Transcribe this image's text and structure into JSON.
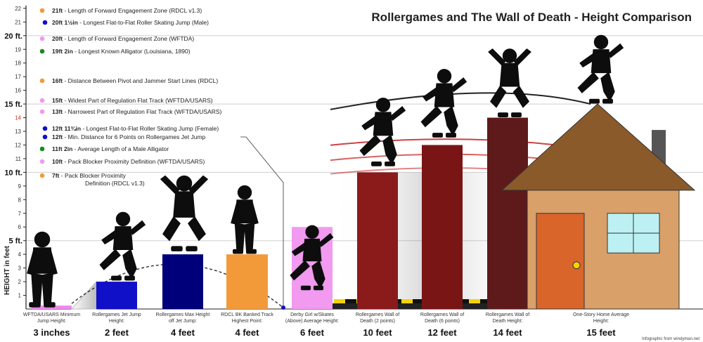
{
  "chart_data": {
    "type": "bar",
    "title": "Rollergames and The Wall of Death - Height Comparison",
    "ylabel": "HEIGHT in feet",
    "ylim": [
      0,
      22
    ],
    "yticks": [
      {
        "value": 1,
        "label": "1"
      },
      {
        "value": 2,
        "label": "2"
      },
      {
        "value": 3,
        "label": "3"
      },
      {
        "value": 4,
        "label": "4"
      },
      {
        "value": 5,
        "label": "5 ft.",
        "major": true
      },
      {
        "value": 6,
        "label": "6"
      },
      {
        "value": 7,
        "label": "7"
      },
      {
        "value": 8,
        "label": "8"
      },
      {
        "value": 9,
        "label": "9"
      },
      {
        "value": 10,
        "label": "10 ft.",
        "major": true
      },
      {
        "value": 11,
        "label": "11"
      },
      {
        "value": 12,
        "label": "12"
      },
      {
        "value": 13,
        "label": "13"
      },
      {
        "value": 14,
        "label": "14",
        "accent": true
      },
      {
        "value": 15,
        "label": "15 ft.",
        "major": true
      },
      {
        "value": 16,
        "label": "16"
      },
      {
        "value": 17,
        "label": "17"
      },
      {
        "value": 18,
        "label": "18"
      },
      {
        "value": 19,
        "label": "19"
      },
      {
        "value": 20,
        "label": "20 ft.",
        "major": true
      },
      {
        "value": 21,
        "label": "21"
      },
      {
        "value": 22,
        "label": "22"
      }
    ],
    "categories": [
      {
        "name": "WFTDA/USARS Minimum Jump Height:",
        "display": "3 inches",
        "value": 0.25,
        "color": "#ee88ee"
      },
      {
        "name": "Rollergames Jet Jump Height:",
        "display": "2 feet",
        "value": 2,
        "color": "#1010c8"
      },
      {
        "name": "Rollergames Max Height off Jet Jump:",
        "display": "4 feet",
        "value": 4,
        "color": "#00007a"
      },
      {
        "name": "RDCL BK Banked Track Highest Point:",
        "display": "4 feet",
        "value": 4,
        "color": "#f29a3a"
      },
      {
        "name": "Derby Girl w/Skates (Above) Average Height:",
        "display": "6 feet",
        "value": 6,
        "color": "#f19af0"
      },
      {
        "name": "Rollergames Wall of Death (2 points)",
        "display": "10 feet",
        "value": 10,
        "color": "#8b1a1a"
      },
      {
        "name": "Rollergames Wall of Death (6 points)",
        "display": "12 feet",
        "value": 12,
        "color": "#7a1515"
      },
      {
        "name": "Rollergames Wall of Death Height:",
        "display": "14 feet",
        "value": 14,
        "color": "#5e1a1a"
      },
      {
        "name": "One-Story Home Average Height:",
        "display": "15 feet",
        "value": 15,
        "color": "#d9a06a"
      }
    ],
    "annotations": [
      {
        "value": 21,
        "bold": "21ft",
        "text": " - Length of Forward Engagement Zone (RDCL v1.3)",
        "color": "#f29a3a"
      },
      {
        "value": 20.3,
        "bold": "20ft 1½in",
        "text": " - Longest Flat-to-Flat Roller Skating Jump (Male)",
        "color": "#1010c8"
      },
      {
        "value": 20,
        "bold": "20ft",
        "text": " - Length of Forward Engagement Zone (WFTDA)",
        "color": "#f19af0"
      },
      {
        "value": 19.17,
        "bold": "19ft 2in",
        "text": " - Longest Known Alligator (Louisiana, 1890)",
        "color": "#1a8a1a"
      },
      {
        "value": 16,
        "bold": "16ft",
        "text": " - Distance Between Pivot and Jammer Start Lines (RDCL)",
        "color": "#f29a3a"
      },
      {
        "value": 15,
        "bold": "15ft",
        "text": " - Widest Part of Regulation Flat Track (WFTDA/USARS)",
        "color": "#f19af0"
      },
      {
        "value": 13,
        "bold": "13ft",
        "text": " - Narrowest Part of Regulation Flat Track (WFTDA/USARS)",
        "color": "#f19af0"
      },
      {
        "value": 12.98,
        "bold": "12ft 11¾in",
        "text": " - Longest Flat-to-Flat Roller Skating Jump (Female)",
        "color": "#1010c8"
      },
      {
        "value": 12,
        "bold": "12ft",
        "text": " - Min. Distance for 6 Points on Rollergames Jet Jump",
        "color": "#1010c8"
      },
      {
        "value": 11.17,
        "bold": "11ft 2in",
        "text": " - Average Length of a Male Alligator",
        "color": "#1a8a1a"
      },
      {
        "value": 10,
        "bold": "10ft",
        "text": " - Pack Blocker Proximity Definition (WFTDA/USARS)",
        "color": "#f19af0"
      },
      {
        "value": 7,
        "bold": "7ft",
        "text": " - Pack Blocker Proximity",
        "text2": "Definition (RDCL v1.3)",
        "color": "#f29a3a"
      }
    ],
    "credit": "Infographic from windyman.net",
    "grid": true
  }
}
